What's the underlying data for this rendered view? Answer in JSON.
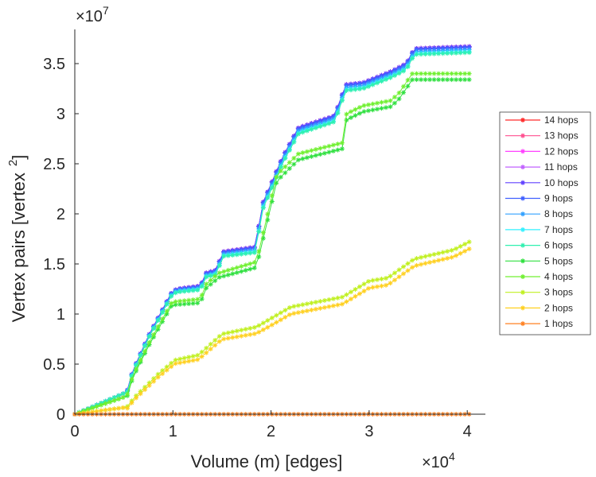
{
  "chart_data": {
    "type": "line",
    "title": "",
    "xlabel": "Volume (m) [edges]",
    "ylabel": "Vertex pairs [vertex",
    "ylabel_superscript": "2",
    "ylabel_close": "]",
    "x_multiplier": "×10",
    "x_multiplier_exp": "4",
    "y_multiplier": "×10",
    "y_multiplier_exp": "7",
    "xlim": [
      0,
      4.2
    ],
    "ylim": [
      0,
      3.85
    ],
    "x_unit_scale": 10000,
    "y_unit_scale": 10000000,
    "xticks": [
      "0",
      "1",
      "2",
      "3",
      "4"
    ],
    "yticks": [
      "0",
      "0.5",
      "1",
      "1.5",
      "2",
      "2.5",
      "3",
      "3.5"
    ],
    "legend_position": "right",
    "marker": "asterisk",
    "series": [
      {
        "name": "14 hops",
        "color": "#ff2a2a",
        "shape": "top",
        "offset": 0
      },
      {
        "name": "13 hops",
        "color": "#ff4f8f",
        "shape": "top",
        "offset": 0
      },
      {
        "name": "12 hops",
        "color": "#ff40ff",
        "shape": "top",
        "offset": 0
      },
      {
        "name": "11 hops",
        "color": "#c060ff",
        "shape": "top",
        "offset": 0
      },
      {
        "name": "10 hops",
        "color": "#6040ff",
        "shape": "top",
        "offset": 0
      },
      {
        "name": "9 hops",
        "color": "#4060ff",
        "shape": "top",
        "offset": -0.01
      },
      {
        "name": "8 hops",
        "color": "#30a0ff",
        "shape": "top",
        "offset": -0.03
      },
      {
        "name": "7 hops",
        "color": "#30f0ff",
        "shape": "top",
        "offset": -0.05
      },
      {
        "name": "6 hops",
        "color": "#30f0b0",
        "shape": "top",
        "offset": -0.06
      },
      {
        "name": "5 hops",
        "color": "#30e040",
        "shape": "mid",
        "offset": -0.06
      },
      {
        "name": "4 hops",
        "color": "#70f030",
        "shape": "mid",
        "offset": 0
      },
      {
        "name": "3 hops",
        "color": "#c0f020",
        "shape": "low",
        "offset": 0
      },
      {
        "name": "2 hops",
        "color": "#ffd020",
        "shape": "low",
        "offset": -0.07
      },
      {
        "name": "1 hops",
        "color": "#ff8020",
        "shape": "zero",
        "offset": 0
      }
    ],
    "shapes": {
      "top": [
        [
          0,
          0
        ],
        [
          0.53,
          0.22
        ],
        [
          0.59,
          0.43
        ],
        [
          0.75,
          0.78
        ],
        [
          0.99,
          1.22
        ],
        [
          1.04,
          1.25
        ],
        [
          1.28,
          1.28
        ],
        [
          1.34,
          1.41
        ],
        [
          1.45,
          1.44
        ],
        [
          1.5,
          1.62
        ],
        [
          1.85,
          1.67
        ],
        [
          1.9,
          2.07
        ],
        [
          2.12,
          2.57
        ],
        [
          2.28,
          2.86
        ],
        [
          2.65,
          2.98
        ],
        [
          2.76,
          3.29
        ],
        [
          2.94,
          3.31
        ],
        [
          3.22,
          3.42
        ],
        [
          3.38,
          3.5
        ],
        [
          3.46,
          3.65
        ],
        [
          4.02,
          3.67
        ]
      ],
      "mid": [
        [
          0,
          0
        ],
        [
          0.53,
          0.18
        ],
        [
          0.59,
          0.38
        ],
        [
          0.75,
          0.7
        ],
        [
          0.99,
          1.12
        ],
        [
          1.28,
          1.15
        ],
        [
          1.34,
          1.3
        ],
        [
          1.47,
          1.41
        ],
        [
          1.85,
          1.52
        ],
        [
          2.06,
          2.39
        ],
        [
          2.28,
          2.6
        ],
        [
          2.73,
          2.71
        ],
        [
          2.77,
          3.0
        ],
        [
          2.94,
          3.08
        ],
        [
          3.22,
          3.13
        ],
        [
          3.3,
          3.2
        ],
        [
          3.44,
          3.4
        ],
        [
          4.02,
          3.4
        ]
      ],
      "low": [
        [
          0,
          0
        ],
        [
          0.53,
          0.07
        ],
        [
          0.61,
          0.17
        ],
        [
          0.85,
          0.4
        ],
        [
          1.02,
          0.54
        ],
        [
          1.26,
          0.59
        ],
        [
          1.5,
          0.8
        ],
        [
          1.85,
          0.87
        ],
        [
          2.2,
          1.07
        ],
        [
          2.73,
          1.17
        ],
        [
          3.0,
          1.33
        ],
        [
          3.19,
          1.36
        ],
        [
          3.46,
          1.55
        ],
        [
          3.86,
          1.64
        ],
        [
          4.02,
          1.72
        ]
      ],
      "zero": [
        [
          0,
          0
        ],
        [
          4.02,
          0
        ]
      ]
    }
  }
}
